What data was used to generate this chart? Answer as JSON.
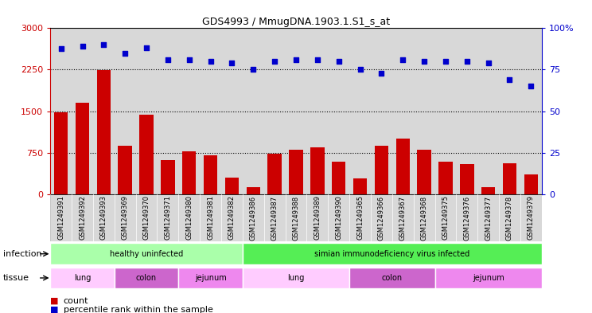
{
  "title": "GDS4993 / MmugDNA.1903.1.S1_s_at",
  "samples": [
    "GSM1249391",
    "GSM1249392",
    "GSM1249393",
    "GSM1249369",
    "GSM1249370",
    "GSM1249371",
    "GSM1249380",
    "GSM1249381",
    "GSM1249382",
    "GSM1249386",
    "GSM1249387",
    "GSM1249388",
    "GSM1249389",
    "GSM1249390",
    "GSM1249365",
    "GSM1249366",
    "GSM1249367",
    "GSM1249368",
    "GSM1249375",
    "GSM1249376",
    "GSM1249377",
    "GSM1249378",
    "GSM1249379"
  ],
  "counts": [
    1480,
    1650,
    2240,
    870,
    1440,
    620,
    770,
    700,
    300,
    130,
    730,
    800,
    850,
    590,
    280,
    870,
    1010,
    800,
    580,
    540,
    120,
    560,
    360
  ],
  "percentiles": [
    87.5,
    89,
    90,
    85,
    88,
    81,
    81,
    80,
    79,
    75,
    80,
    81,
    81,
    80,
    75,
    73,
    81,
    80,
    80,
    80,
    79,
    69,
    65
  ],
  "bar_color": "#cc0000",
  "dot_color": "#0000cc",
  "ylim_left": [
    0,
    3000
  ],
  "ylim_right": [
    0,
    100
  ],
  "yticks_left": [
    0,
    750,
    1500,
    2250,
    3000
  ],
  "yticks_right": [
    0,
    25,
    50,
    75,
    100
  ],
  "infection_groups": [
    {
      "label": "healthy uninfected",
      "start": 0,
      "end": 9,
      "color": "#aaffaa"
    },
    {
      "label": "simian immunodeficiency virus infected",
      "start": 9,
      "end": 23,
      "color": "#55ee55"
    }
  ],
  "tissue_groups": [
    {
      "label": "lung",
      "start": 0,
      "end": 3,
      "color": "#ffccff"
    },
    {
      "label": "colon",
      "start": 3,
      "end": 6,
      "color": "#cc66cc"
    },
    {
      "label": "jejunum",
      "start": 6,
      "end": 9,
      "color": "#ee88ee"
    },
    {
      "label": "lung",
      "start": 9,
      "end": 14,
      "color": "#ffccff"
    },
    {
      "label": "colon",
      "start": 14,
      "end": 18,
      "color": "#cc66cc"
    },
    {
      "label": "jejunum",
      "start": 18,
      "end": 23,
      "color": "#ee88ee"
    }
  ],
  "infection_row_label": "infection",
  "tissue_row_label": "tissue",
  "legend_count_label": "count",
  "legend_percentile_label": "percentile rank within the sample",
  "left_axis_color": "#cc0000",
  "right_axis_color": "#0000cc",
  "background_color": "#d8d8d8"
}
